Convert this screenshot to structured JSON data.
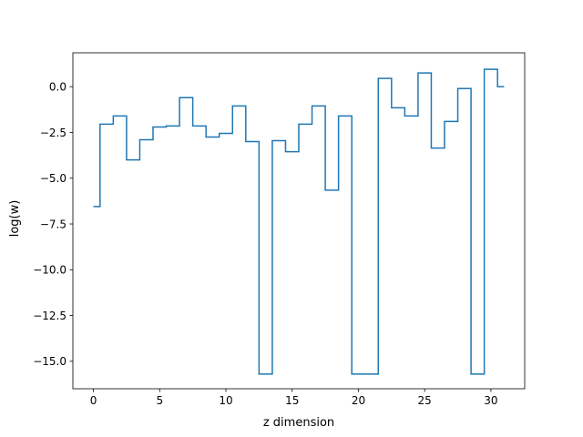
{
  "chart_data": {
    "type": "line",
    "drawstyle": "steps-mid",
    "xlabel": "z dimension",
    "ylabel": "log(w)",
    "xlim": [
      -1.55,
      32.55
    ],
    "ylim": [
      -16.5,
      1.85
    ],
    "grid": false,
    "xticks": [
      0,
      5,
      10,
      15,
      20,
      25,
      30
    ],
    "xtick_labels": [
      "0",
      "5",
      "10",
      "15",
      "20",
      "25",
      "30"
    ],
    "yticks": [
      0.0,
      -2.5,
      -5.0,
      -7.5,
      -10.0,
      -12.5,
      -15.0
    ],
    "ytick_labels": [
      "0.0",
      "−2.5",
      "−5.0",
      "−7.5",
      "−10.0",
      "−12.5",
      "−15.0"
    ],
    "series": [
      {
        "color": "#1f77b4",
        "x": [
          0,
          1,
          2,
          3,
          4,
          5,
          6,
          7,
          8,
          9,
          10,
          11,
          12,
          13,
          14,
          15,
          16,
          17,
          18,
          19,
          20,
          21,
          22,
          23,
          24,
          25,
          26,
          27,
          28,
          29,
          30,
          31
        ],
        "y": [
          -6.55,
          -2.05,
          -1.6,
          -4.0,
          -2.9,
          -2.2,
          -2.15,
          -0.6,
          -2.15,
          -2.75,
          -2.55,
          -1.05,
          -3.0,
          -15.7,
          -2.95,
          -3.55,
          -2.05,
          -1.05,
          -5.65,
          -1.6,
          -15.7,
          -15.7,
          0.45,
          -1.15,
          -1.6,
          0.75,
          -3.35,
          -1.9,
          -0.1,
          -15.7,
          0.95,
          0.0
        ]
      }
    ]
  }
}
